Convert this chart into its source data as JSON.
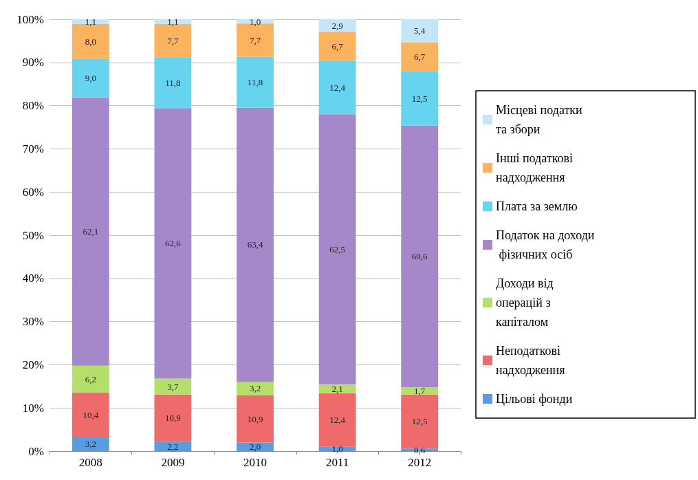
{
  "chart_data": {
    "type": "bar",
    "stacked": true,
    "categories": [
      "2008",
      "2009",
      "2010",
      "2011",
      "2012"
    ],
    "ylim": [
      0,
      100
    ],
    "yticks": [
      {
        "value": 0,
        "label": "0%"
      },
      {
        "value": 10,
        "label": "10%"
      },
      {
        "value": 20,
        "label": "20%"
      },
      {
        "value": 30,
        "label": "30%"
      },
      {
        "value": 40,
        "label": "40%"
      },
      {
        "value": 50,
        "label": "50%"
      },
      {
        "value": 60,
        "label": "60%"
      },
      {
        "value": 70,
        "label": "70%"
      },
      {
        "value": 80,
        "label": "80%"
      },
      {
        "value": 90,
        "label": "90%"
      },
      {
        "value": 100,
        "label": "100%"
      }
    ],
    "grid": "y",
    "legend": "right",
    "series": [
      {
        "name": "Цільові фонди",
        "color": "#5b9be0",
        "values": [
          3.2,
          2.2,
          2.0,
          1.0,
          0.6
        ],
        "value_labels": [
          "3,2",
          "2,2",
          "2,0",
          "1,0",
          "0,6"
        ]
      },
      {
        "name": "Неподаткові надходження",
        "color": "#ef6b6b",
        "values": [
          10.4,
          10.9,
          10.9,
          12.4,
          12.5
        ],
        "value_labels": [
          "10,4",
          "10,9",
          "10,9",
          "12,4",
          "12,5"
        ]
      },
      {
        "name": "Доходи від операцій з капіталом",
        "color": "#b5df6b",
        "values": [
          6.2,
          3.7,
          3.2,
          2.1,
          1.7
        ],
        "value_labels": [
          "6,2",
          "3,7",
          "3,2",
          "2,1",
          "1,7"
        ]
      },
      {
        "name": "Податок на доходи фізичних осіб",
        "color": "#a588c9",
        "values": [
          62.1,
          62.6,
          63.4,
          62.5,
          60.6
        ],
        "value_labels": [
          "62,1",
          "62,6",
          "63,4",
          "62,5",
          "60,6"
        ]
      },
      {
        "name": "Плата за землю",
        "color": "#66d3ef",
        "values": [
          9.0,
          11.8,
          11.8,
          12.4,
          12.5
        ],
        "value_labels": [
          "9,0",
          "11,8",
          "11,8",
          "12,4",
          "12,5"
        ]
      },
      {
        "name": "Інші податкові надходження",
        "color": "#fbb35f",
        "values": [
          8.0,
          7.7,
          7.7,
          6.7,
          6.7
        ],
        "value_labels": [
          "8,0",
          "7,7",
          "7,7",
          "6,7",
          "6,7"
        ]
      },
      {
        "name": "Місцеві податки та збори",
        "color": "#c5e6f8",
        "values": [
          1.1,
          1.1,
          1.0,
          2.9,
          5.4
        ],
        "value_labels": [
          "1,1",
          "1,1",
          "1,0",
          "2,9",
          "5,4"
        ]
      }
    ]
  }
}
